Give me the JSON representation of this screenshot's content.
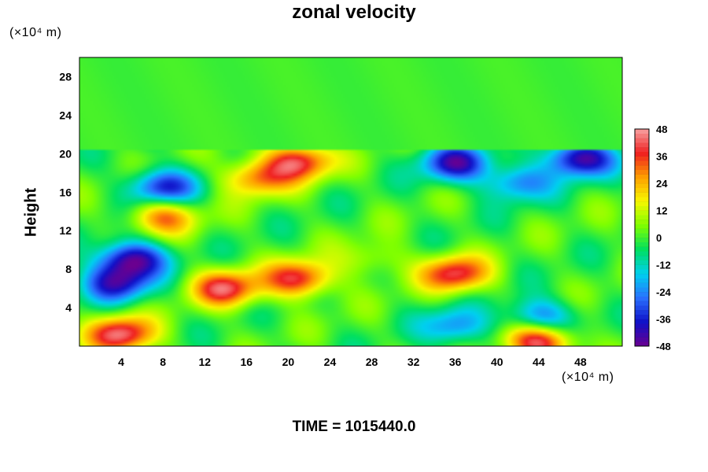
{
  "chart_data": {
    "type": "heatmap",
    "title": "zonal velocity",
    "ylabel": "Height",
    "xlabel": "",
    "x_unit": "(×10⁴ m)",
    "y_unit": "(×10⁴ m)",
    "xlim": [
      0,
      52
    ],
    "ylim": [
      0,
      30
    ],
    "x_ticks": [
      4,
      8,
      12,
      16,
      20,
      24,
      28,
      32,
      36,
      40,
      44,
      48
    ],
    "y_ticks": [
      4,
      8,
      12,
      16,
      20,
      24,
      28
    ],
    "colorbar": {
      "range": [
        -48,
        48
      ],
      "ticks": [
        48,
        36,
        24,
        12,
        0,
        -12,
        -24,
        -36,
        -48
      ],
      "colormap": [
        "#6a0090",
        "#1010c8",
        "#2a70ff",
        "#00d0f0",
        "#00e060",
        "#7fff00",
        "#f8f800",
        "#ffa000",
        "#f02020",
        "#f8a0a0"
      ]
    },
    "field_features": [
      {
        "x": 4,
        "y": 1.2,
        "value": 44
      },
      {
        "x": 3.5,
        "y": 6.5,
        "value": -36
      },
      {
        "x": 5,
        "y": 9,
        "value": -46
      },
      {
        "x": 14,
        "y": 6,
        "value": 40
      },
      {
        "x": 21,
        "y": 7,
        "value": 40
      },
      {
        "x": 21,
        "y": 19.2,
        "value": 40
      },
      {
        "x": 17,
        "y": 17.5,
        "value": 30
      },
      {
        "x": 8,
        "y": 13.5,
        "value": 30
      },
      {
        "x": 36,
        "y": 7.5,
        "value": 40
      },
      {
        "x": 44,
        "y": 0.5,
        "value": 46
      },
      {
        "x": 36,
        "y": 19,
        "value": -40
      },
      {
        "x": 48,
        "y": 19.5,
        "value": -46
      },
      {
        "x": 8,
        "y": 16.5,
        "value": -36
      },
      {
        "x": 44,
        "y": 3,
        "value": -28
      },
      {
        "x": 36,
        "y": 2,
        "value": -24
      },
      {
        "x": 42,
        "y": 17,
        "value": -26
      },
      {
        "x": 28,
        "y": 9,
        "value": 12
      }
    ],
    "upper_layer": {
      "from_height": 20.5,
      "value": 0
    }
  },
  "time_label": "TIME = 1015440.0"
}
